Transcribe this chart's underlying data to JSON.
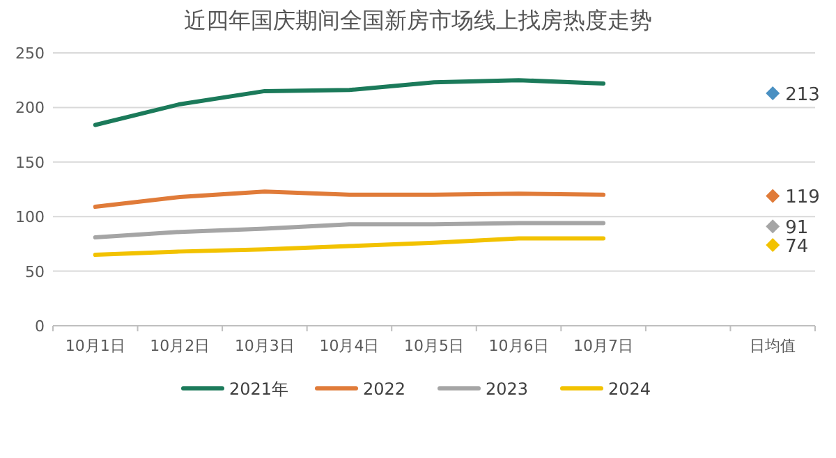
{
  "chart_data": {
    "type": "line",
    "title": "近四年国庆期间全国新房市场线上找房热度走势",
    "categories": [
      "10月1日",
      "10月2日",
      "10月3日",
      "10月4日",
      "10月5日",
      "10月6日",
      "10月7日",
      null,
      "日均值"
    ],
    "series": [
      {
        "name": "2021年",
        "color": "#1b7a5a",
        "values": [
          184,
          203,
          215,
          216,
          223,
          225,
          222,
          null,
          null
        ]
      },
      {
        "name": "2022",
        "color": "#e07b39",
        "values": [
          109,
          118,
          123,
          120,
          120,
          121,
          120,
          null,
          null
        ]
      },
      {
        "name": "2023",
        "color": "#a5a5a5",
        "values": [
          81,
          86,
          89,
          93,
          93,
          94,
          94,
          null,
          null
        ]
      },
      {
        "name": "2024",
        "color": "#f2c200",
        "values": [
          65,
          68,
          70,
          73,
          76,
          80,
          80,
          null,
          null
        ]
      },
      {
        "type": "scatter",
        "marker": "diamond",
        "color": "#4a90c2",
        "values": [
          null,
          null,
          null,
          null,
          null,
          null,
          null,
          null,
          213
        ],
        "value_labels": [
          null,
          null,
          null,
          null,
          null,
          null,
          null,
          null,
          "213"
        ]
      },
      {
        "type": "scatter",
        "marker": "diamond",
        "color": "#e07b39",
        "values": [
          null,
          null,
          null,
          null,
          null,
          null,
          null,
          null,
          119
        ],
        "value_labels": [
          null,
          null,
          null,
          null,
          null,
          null,
          null,
          null,
          "119"
        ]
      },
      {
        "type": "scatter",
        "marker": "diamond",
        "color": "#a5a5a5",
        "values": [
          null,
          null,
          null,
          null,
          null,
          null,
          null,
          null,
          91
        ],
        "value_labels": [
          null,
          null,
          null,
          null,
          null,
          null,
          null,
          null,
          "91"
        ]
      },
      {
        "type": "scatter",
        "marker": "diamond",
        "color": "#f2c200",
        "values": [
          null,
          null,
          null,
          null,
          null,
          null,
          null,
          null,
          74
        ],
        "value_labels": [
          null,
          null,
          null,
          null,
          null,
          null,
          null,
          null,
          "74"
        ]
      }
    ],
    "ylim": [
      0,
      250
    ],
    "yticks": [
      0,
      50,
      100,
      150,
      200,
      250
    ],
    "grid": "y",
    "legend": "bottom"
  }
}
